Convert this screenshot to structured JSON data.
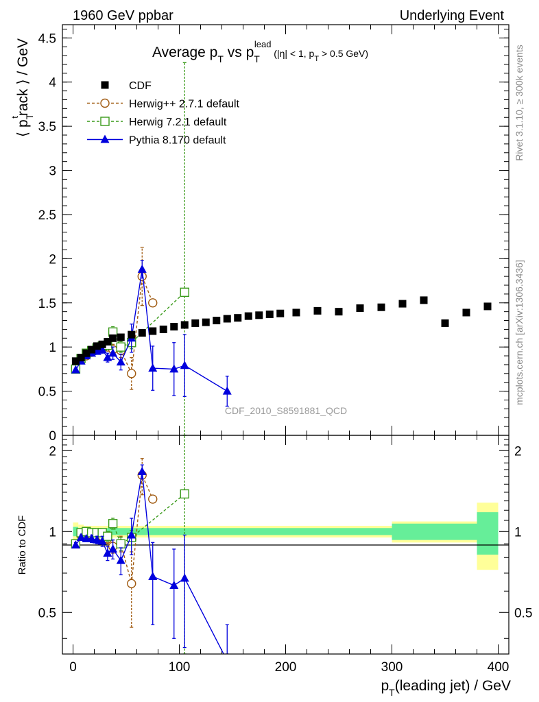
{
  "header": {
    "left": "1960 GeV ppbar",
    "right": "Underlying Event"
  },
  "side_labels": {
    "rivet": "Rivet 3.1.10, ≥ 300k events",
    "mcplots": "mcplots.cern.ch [arXiv:1306.3436]"
  },
  "watermark": "CDF_2010_S8591881_QCD",
  "chart_data": [
    {
      "type": "scatter",
      "panel": "main",
      "title": "Average pT vs pTlead (|η| < 1, pT > 0.5 GeV)",
      "xlabel": "pT(leading jet) / GeV",
      "ylabel": "⟨ pTtrack ⟩ / GeV",
      "xlim": [
        -10,
        410
      ],
      "ylim": [
        0,
        4.65
      ],
      "x_ticks": [
        0,
        100,
        200,
        300,
        400
      ],
      "y_ticks": [
        0,
        0.5,
        1,
        1.5,
        2,
        2.5,
        3,
        3.5,
        4,
        4.5
      ],
      "y_tick_labels": [
        "0",
        "0.5",
        "1",
        "1.5",
        "2",
        "2.5",
        "3",
        "3.5",
        "4",
        "4.5"
      ],
      "legend_position": "top-left",
      "series": [
        {
          "name": "CDF",
          "color": "#000000",
          "marker": "square-filled",
          "line": "none",
          "x": [
            2.5,
            7.5,
            12.5,
            17.5,
            22.5,
            27.5,
            32.5,
            37.5,
            45,
            55,
            65,
            75,
            85,
            95,
            105,
            115,
            125,
            135,
            145,
            155,
            165,
            175,
            185,
            195,
            210,
            230,
            250,
            270,
            290,
            310,
            330,
            350,
            370,
            390
          ],
          "y": [
            0.84,
            0.88,
            0.93,
            0.97,
            1.01,
            1.03,
            1.06,
            1.1,
            1.11,
            1.14,
            1.16,
            1.18,
            1.2,
            1.23,
            1.25,
            1.27,
            1.28,
            1.3,
            1.32,
            1.33,
            1.35,
            1.36,
            1.37,
            1.38,
            1.39,
            1.41,
            1.4,
            1.44,
            1.45,
            1.49,
            1.53,
            1.27,
            1.39,
            1.46
          ]
        },
        {
          "name": "Herwig++ 2.7.1 default",
          "color": "#a05a10",
          "marker": "circle-open",
          "line": "dashed",
          "x": [
            2.5,
            7.5,
            12.5,
            17.5,
            22.5,
            27.5,
            32.5,
            37.5,
            45,
            55,
            65,
            75
          ],
          "y": [
            0.76,
            0.86,
            0.9,
            0.94,
            0.97,
            0.99,
            1.0,
            0.97,
            0.96,
            0.7,
            1.8,
            1.5
          ],
          "err": [
            0.02,
            0.02,
            0.02,
            0.02,
            0.03,
            0.03,
            0.04,
            0.06,
            0.08,
            0.18,
            0.33,
            0.03
          ]
        },
        {
          "name": "Herwig 7.2.1 default",
          "color": "#3a9a1a",
          "marker": "square-open",
          "line": "dashed",
          "x": [
            2.5,
            7.5,
            12.5,
            17.5,
            22.5,
            27.5,
            32.5,
            37.5,
            45,
            55,
            105
          ],
          "y": [
            0.75,
            0.87,
            0.93,
            0.96,
            0.99,
            1.01,
            1.02,
            1.17,
            1.0,
            1.05,
            1.62
          ],
          "err": [
            0.02,
            0.02,
            0.02,
            0.02,
            0.02,
            0.03,
            0.04,
            0.06,
            0.06,
            0.07,
            2.6
          ]
        },
        {
          "name": "Pythia 8.170 default",
          "color": "#0000dd",
          "marker": "triangle-filled",
          "line": "solid",
          "x": [
            2.5,
            7.5,
            12.5,
            17.5,
            22.5,
            27.5,
            32.5,
            37.5,
            45,
            55,
            65,
            75,
            95,
            105,
            145
          ],
          "y": [
            0.74,
            0.84,
            0.9,
            0.93,
            0.95,
            0.97,
            0.88,
            0.93,
            0.83,
            1.1,
            1.88,
            0.76,
            0.75,
            0.79,
            0.5
          ],
          "err": [
            0.02,
            0.02,
            0.02,
            0.03,
            0.03,
            0.04,
            0.05,
            0.07,
            0.09,
            0.16,
            0.1,
            0.25,
            0.3,
            0.35,
            0.17
          ]
        }
      ]
    },
    {
      "type": "scatter",
      "panel": "ratio",
      "ylabel": "Ratio to CDF",
      "xlim": [
        -10,
        410
      ],
      "ylim": [
        0.35,
        2.28
      ],
      "x_ticks": [
        0,
        100,
        200,
        300,
        400
      ],
      "x_tick_labels": [
        "0",
        "100",
        "200",
        "300",
        "400"
      ],
      "y_tick_labels": [
        "0.5",
        "1",
        "2"
      ],
      "bands": {
        "edges": [
          0,
          5,
          10,
          15,
          20,
          25,
          30,
          35,
          40,
          50,
          60,
          70,
          80,
          90,
          100,
          110,
          120,
          130,
          140,
          150,
          160,
          170,
          180,
          190,
          200,
          220,
          240,
          260,
          280,
          300,
          320,
          340,
          360,
          380,
          400
        ],
        "inner": [
          0.04,
          0.03,
          0.03,
          0.03,
          0.03,
          0.03,
          0.03,
          0.03,
          0.03,
          0.03,
          0.03,
          0.03,
          0.03,
          0.03,
          0.03,
          0.03,
          0.03,
          0.03,
          0.03,
          0.03,
          0.03,
          0.03,
          0.03,
          0.03,
          0.03,
          0.03,
          0.03,
          0.03,
          0.03,
          0.07,
          0.07,
          0.07,
          0.07,
          0.18
        ],
        "outer": [
          0.08,
          0.06,
          0.05,
          0.05,
          0.05,
          0.05,
          0.05,
          0.05,
          0.05,
          0.05,
          0.05,
          0.05,
          0.05,
          0.05,
          0.05,
          0.05,
          0.05,
          0.05,
          0.05,
          0.05,
          0.05,
          0.05,
          0.05,
          0.05,
          0.05,
          0.05,
          0.05,
          0.05,
          0.05,
          0.09,
          0.09,
          0.09,
          0.09,
          0.28
        ],
        "inner_color": "#66ee99",
        "outer_color": "#ffff99"
      },
      "series": [
        {
          "name": "Herwig++ 2.7.1 default",
          "color": "#a05a10",
          "marker": "circle-open",
          "line": "dashed",
          "x": [
            2.5,
            7.5,
            12.5,
            17.5,
            22.5,
            27.5,
            32.5,
            37.5,
            45,
            55,
            65,
            75
          ],
          "y": [
            0.9,
            0.97,
            0.97,
            0.97,
            0.96,
            0.96,
            0.94,
            0.88,
            0.9,
            0.64,
            1.62,
            1.32
          ],
          "err": [
            0.02,
            0.02,
            0.02,
            0.02,
            0.02,
            0.03,
            0.04,
            0.05,
            0.06,
            0.2,
            0.25,
            0.03
          ]
        },
        {
          "name": "Herwig 7.2.1 default",
          "color": "#3a9a1a",
          "marker": "square-open",
          "line": "dashed",
          "x": [
            2.5,
            7.5,
            12.5,
            17.5,
            22.5,
            27.5,
            32.5,
            37.5,
            45,
            55,
            105
          ],
          "y": [
            0.9,
            0.99,
            1.0,
            0.99,
            0.99,
            0.99,
            0.96,
            1.07,
            0.9,
            0.95,
            1.38
          ],
          "err": [
            0.02,
            0.02,
            0.02,
            0.02,
            0.02,
            0.03,
            0.04,
            0.05,
            0.05,
            0.06,
            3.0
          ]
        },
        {
          "name": "Pythia 8.170 default",
          "color": "#0000dd",
          "marker": "triangle-filled",
          "line": "solid",
          "x": [
            2.5,
            7.5,
            12.5,
            17.5,
            22.5,
            27.5,
            32.5,
            37.5,
            45,
            55,
            65,
            75,
            95,
            105,
            145
          ],
          "y": [
            0.89,
            0.95,
            0.94,
            0.94,
            0.93,
            0.92,
            0.83,
            0.86,
            0.78,
            0.97,
            1.67,
            0.68,
            0.63,
            0.67,
            0.33
          ],
          "err": [
            0.02,
            0.02,
            0.02,
            0.03,
            0.03,
            0.04,
            0.05,
            0.07,
            0.09,
            0.15,
            0.1,
            0.23,
            0.23,
            0.3,
            0.12
          ]
        }
      ]
    }
  ]
}
